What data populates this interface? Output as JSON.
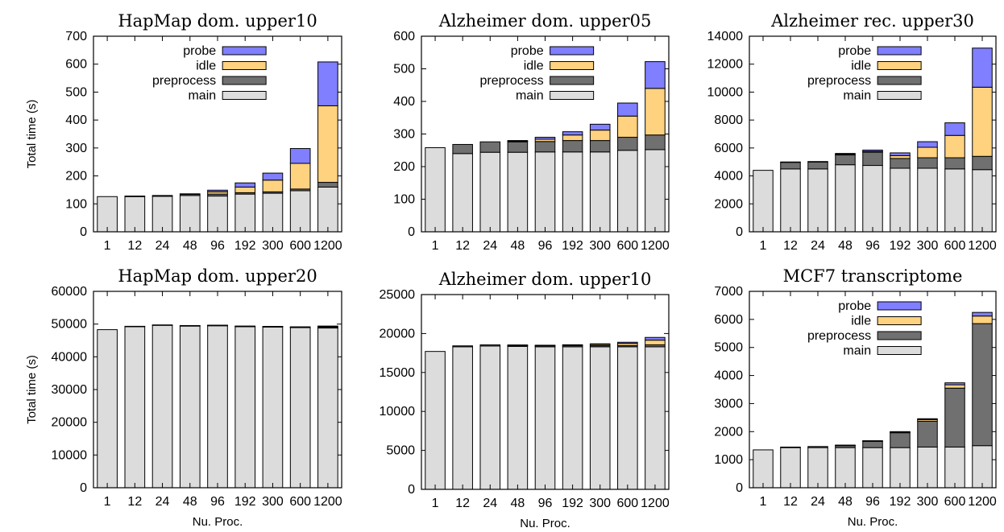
{
  "chart_data": [
    {
      "type": "bar",
      "stacked": true,
      "title": "HapMap dom. upper10",
      "xlabel": "",
      "ylabel": "Total time (s)",
      "ylim": [
        0,
        700
      ],
      "yticks": [
        0,
        100,
        200,
        300,
        400,
        500,
        600,
        700
      ],
      "ytick_labels": [
        "0",
        "100",
        "200",
        "300",
        "400",
        "500",
        "600",
        "700"
      ],
      "categories": [
        "1",
        "12",
        "24",
        "48",
        "96",
        "192",
        "300",
        "600",
        "1200"
      ],
      "legend": true,
      "legend_position": "top-right",
      "series": [
        {
          "name": "main",
          "values": [
            126,
            126,
            127,
            130,
            128,
            135,
            138,
            147,
            160
          ]
        },
        {
          "name": "preprocess",
          "values": [
            0,
            2,
            3,
            5,
            7,
            5,
            5,
            6,
            17
          ]
        },
        {
          "name": "idle",
          "values": [
            0,
            0,
            0,
            0,
            8,
            20,
            42,
            92,
            274
          ]
        },
        {
          "name": "probe",
          "values": [
            0,
            0,
            0,
            1,
            6,
            15,
            25,
            53,
            157
          ]
        }
      ]
    },
    {
      "type": "bar",
      "stacked": true,
      "title": "Alzheimer dom. upper05",
      "xlabel": "",
      "ylabel": "",
      "ylim": [
        0,
        600
      ],
      "yticks": [
        0,
        100,
        200,
        300,
        400,
        500,
        600
      ],
      "ytick_labels": [
        "0",
        "100",
        "200",
        "300",
        "400",
        "500",
        "600"
      ],
      "categories": [
        "1",
        "12",
        "24",
        "48",
        "96",
        "192",
        "300",
        "600",
        "1200"
      ],
      "legend": true,
      "legend_position": "top-right",
      "series": [
        {
          "name": "main",
          "values": [
            258,
            240,
            244,
            244,
            245,
            245,
            245,
            250,
            252
          ]
        },
        {
          "name": "preprocess",
          "values": [
            0,
            28,
            32,
            32,
            32,
            35,
            35,
            40,
            45
          ]
        },
        {
          "name": "idle",
          "values": [
            0,
            0,
            0,
            2,
            7,
            17,
            32,
            65,
            143
          ]
        },
        {
          "name": "probe",
          "values": [
            0,
            0,
            0,
            2,
            6,
            10,
            18,
            40,
            82
          ]
        }
      ]
    },
    {
      "type": "bar",
      "stacked": true,
      "title": "Alzheimer rec. upper30",
      "xlabel": "",
      "ylabel": "",
      "ylim": [
        0,
        14000
      ],
      "yticks": [
        0,
        2000,
        4000,
        6000,
        8000,
        10000,
        12000,
        14000
      ],
      "ytick_labels": [
        "0",
        "2000",
        "4000",
        "6000",
        "8000",
        "10000",
        "12000",
        "14000"
      ],
      "categories": [
        "1",
        "12",
        "24",
        "48",
        "96",
        "192",
        "300",
        "600",
        "1200"
      ],
      "legend": true,
      "legend_position": "top-right",
      "series": [
        {
          "name": "main",
          "values": [
            4400,
            4500,
            4500,
            4800,
            4750,
            4550,
            4550,
            4500,
            4450
          ]
        },
        {
          "name": "preprocess",
          "values": [
            0,
            480,
            500,
            700,
            950,
            700,
            750,
            800,
            950
          ]
        },
        {
          "name": "idle",
          "values": [
            0,
            0,
            0,
            50,
            50,
            200,
            750,
            1600,
            4950
          ]
        },
        {
          "name": "probe",
          "values": [
            0,
            20,
            30,
            60,
            100,
            200,
            400,
            900,
            2800
          ]
        }
      ]
    },
    {
      "type": "bar",
      "stacked": true,
      "title": "HapMap dom. upper20",
      "xlabel": "Nu. Proc.",
      "ylabel": "Total time (s)",
      "ylim": [
        0,
        60000
      ],
      "yticks": [
        0,
        10000,
        20000,
        30000,
        40000,
        50000,
        60000
      ],
      "ytick_labels": [
        "0",
        "10000",
        "20000",
        "30000",
        "40000",
        "50000",
        "60000"
      ],
      "categories": [
        "1",
        "12",
        "24",
        "48",
        "96",
        "192",
        "300",
        "600",
        "1200"
      ],
      "legend": false,
      "series": [
        {
          "name": "main",
          "values": [
            48300,
            49300,
            49700,
            49500,
            49600,
            49300,
            49200,
            49000,
            48800
          ]
        },
        {
          "name": "preprocess",
          "values": [
            0,
            30,
            40,
            40,
            40,
            50,
            50,
            60,
            150
          ]
        },
        {
          "name": "idle",
          "values": [
            0,
            0,
            0,
            10,
            10,
            10,
            20,
            50,
            250
          ]
        },
        {
          "name": "probe",
          "values": [
            0,
            0,
            0,
            10,
            10,
            10,
            20,
            50,
            200
          ]
        }
      ]
    },
    {
      "type": "bar",
      "stacked": true,
      "title": "Alzheimer dom. upper10",
      "xlabel": "Nu. Proc.",
      "ylabel": "",
      "ylim": [
        0,
        25000
      ],
      "yticks": [
        0,
        5000,
        10000,
        15000,
        20000,
        25000
      ],
      "ytick_labels": [
        "0",
        "5000",
        "10000",
        "15000",
        "20000",
        "25000"
      ],
      "categories": [
        "1",
        "12",
        "24",
        "48",
        "96",
        "192",
        "300",
        "600",
        "1200"
      ],
      "legend": false,
      "series": [
        {
          "name": "main",
          "values": [
            17700,
            18300,
            18400,
            18350,
            18300,
            18300,
            18300,
            18300,
            18300
          ]
        },
        {
          "name": "preprocess",
          "values": [
            0,
            120,
            150,
            150,
            150,
            150,
            150,
            150,
            250
          ]
        },
        {
          "name": "idle",
          "values": [
            0,
            0,
            0,
            20,
            30,
            80,
            150,
            280,
            600
          ]
        },
        {
          "name": "probe",
          "values": [
            0,
            0,
            0,
            10,
            20,
            30,
            80,
            150,
            350
          ]
        }
      ]
    },
    {
      "type": "bar",
      "stacked": true,
      "title": "MCF7 transcriptome",
      "xlabel": "Nu. Proc.",
      "ylabel": "",
      "ylim": [
        0,
        7000
      ],
      "yticks": [
        0,
        1000,
        2000,
        3000,
        4000,
        5000,
        6000,
        7000
      ],
      "ytick_labels": [
        "0",
        "1000",
        "2000",
        "3000",
        "4000",
        "5000",
        "6000",
        "7000"
      ],
      "categories": [
        "1",
        "12",
        "24",
        "48",
        "96",
        "192",
        "300",
        "600",
        "1200"
      ],
      "legend": true,
      "legend_position": "top-right",
      "series": [
        {
          "name": "main",
          "values": [
            1350,
            1430,
            1430,
            1430,
            1430,
            1430,
            1450,
            1450,
            1500
          ]
        },
        {
          "name": "preprocess",
          "values": [
            0,
            20,
            40,
            80,
            230,
            530,
            920,
            2100,
            4350
          ]
        },
        {
          "name": "idle",
          "values": [
            0,
            0,
            0,
            5,
            10,
            30,
            60,
            120,
            270
          ]
        },
        {
          "name": "probe",
          "values": [
            0,
            0,
            0,
            5,
            5,
            10,
            30,
            70,
            130
          ]
        }
      ]
    }
  ],
  "colors": {
    "main": "#dcdcdc",
    "preprocess": "#707070",
    "idle": "#ffd27f",
    "probe": "#7f7fff",
    "outline": "#000000"
  }
}
